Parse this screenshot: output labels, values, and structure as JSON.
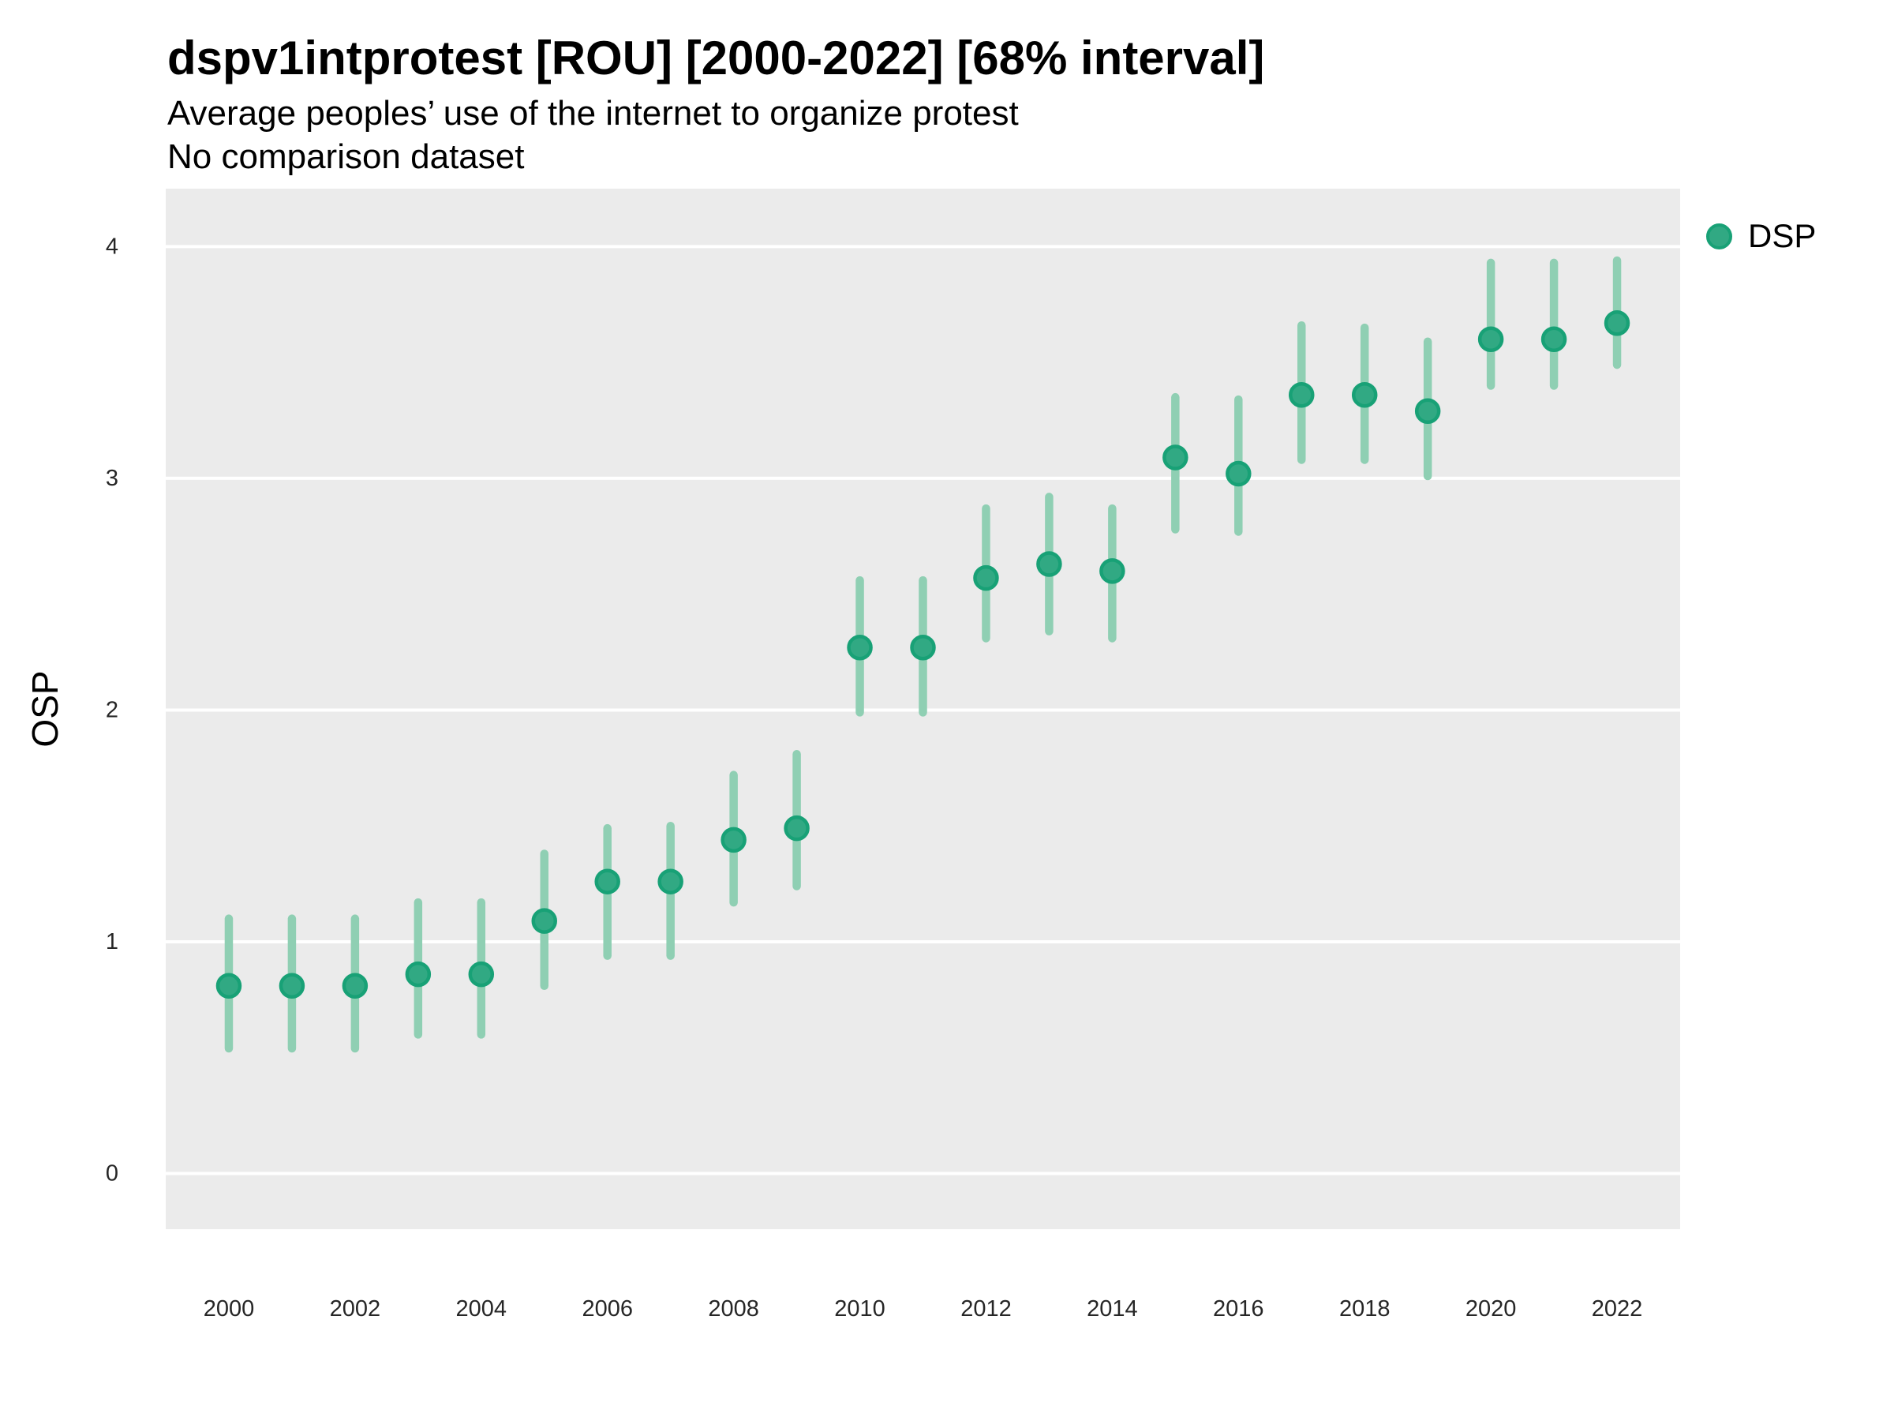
{
  "header": {
    "title": "dspv1intprotest [ROU] [2000-2022] [68% interval]",
    "subtitle": "Average peoples’ use of the internet to organize protest",
    "note": "No comparison dataset"
  },
  "y_axis": {
    "label": "OSP"
  },
  "x_axis": {
    "label": ""
  },
  "legend": {
    "label": "DSP",
    "position": "right"
  },
  "colors": {
    "panel_bg": "#EBEBEB",
    "gridline": "#FFFFFF",
    "point_fill": "#31A983",
    "point_stroke": "#18A176",
    "interval_bar": "#8FCFB3",
    "tick_text": "#262626",
    "title_text": "#000000"
  },
  "chart_data": {
    "type": "scatter",
    "title": "dspv1intprotest [ROU] [2000-2022] [68% interval]",
    "subtitle": "Average peoples’ use of the internet to organize protest",
    "note": "No comparison dataset",
    "interval": "68%",
    "xlabel": "",
    "ylabel": "OSP",
    "legend_position": "right",
    "grid": "major-y-only",
    "x": [
      2000,
      2001,
      2002,
      2003,
      2004,
      2005,
      2006,
      2007,
      2008,
      2009,
      2010,
      2011,
      2012,
      2013,
      2014,
      2015,
      2016,
      2017,
      2018,
      2019,
      2020,
      2021,
      2022
    ],
    "series": [
      {
        "name": "DSP",
        "means": [
          0.81,
          0.81,
          0.81,
          0.86,
          0.86,
          1.09,
          1.26,
          1.26,
          1.44,
          1.49,
          2.27,
          2.27,
          2.57,
          2.63,
          2.6,
          3.09,
          3.02,
          3.36,
          3.36,
          3.29,
          3.6,
          3.6,
          3.67
        ],
        "lower": [
          0.54,
          0.54,
          0.54,
          0.6,
          0.6,
          0.81,
          0.94,
          0.94,
          1.17,
          1.24,
          1.99,
          1.99,
          2.31,
          2.34,
          2.31,
          2.78,
          2.77,
          3.08,
          3.08,
          3.01,
          3.4,
          3.4,
          3.49
        ],
        "upper": [
          1.1,
          1.1,
          1.1,
          1.17,
          1.17,
          1.38,
          1.49,
          1.5,
          1.72,
          1.81,
          2.56,
          2.56,
          2.87,
          2.92,
          2.87,
          3.35,
          3.34,
          3.66,
          3.65,
          3.59,
          3.93,
          3.93,
          3.94
        ]
      }
    ],
    "x_ticks": [
      2000,
      2002,
      2004,
      2006,
      2008,
      2010,
      2012,
      2014,
      2016,
      2018,
      2020,
      2022
    ],
    "y_ticks": [
      0,
      1,
      2,
      3,
      4
    ],
    "xlim": [
      1999,
      2023
    ],
    "ylim": [
      -0.24,
      4.25
    ]
  }
}
